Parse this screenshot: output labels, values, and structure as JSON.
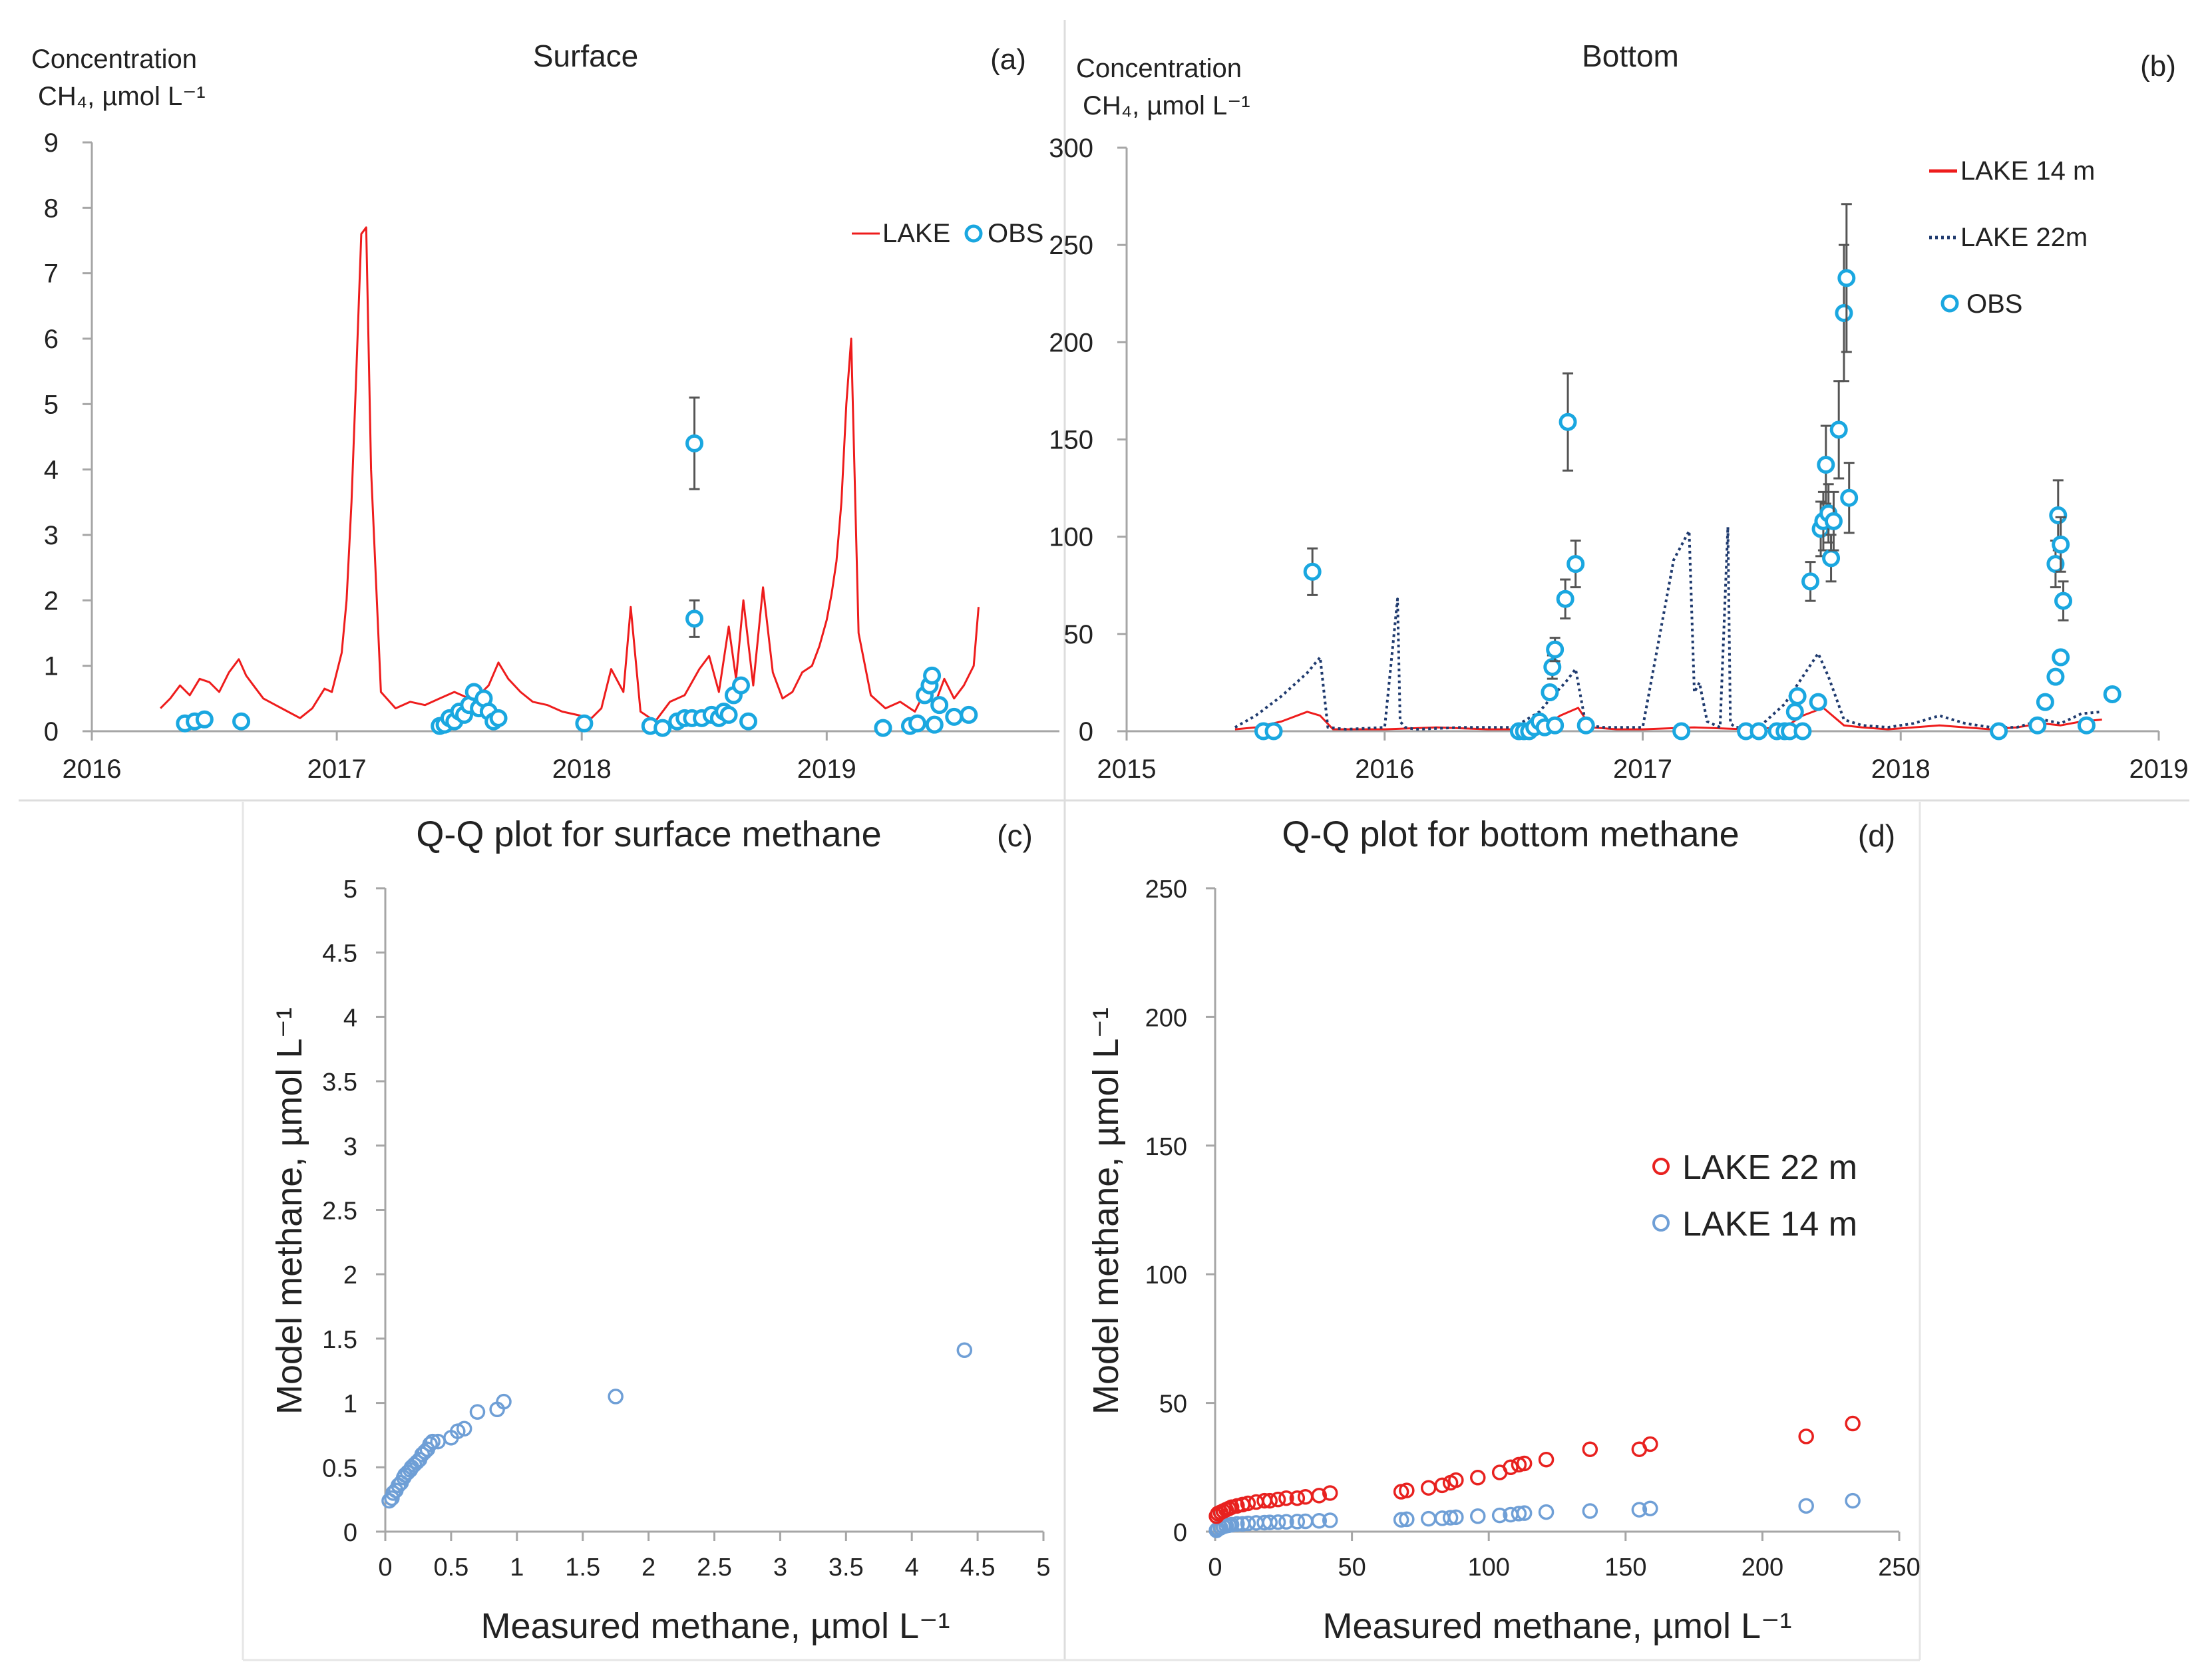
{
  "colors": {
    "lake": "#ee1c1c",
    "lake22": "#1f3a6e",
    "obs": "#1aa7e0",
    "qq_red": "#e8211f",
    "qq_blue": "#6f9fd6",
    "axis": "#a6a6a6",
    "errorbar": "#555555"
  },
  "chart_data": [
    {
      "id": "a",
      "type": "line",
      "title": "Surface",
      "panel_label": "(a)",
      "ylabel": [
        "Concentration",
        "CH₄, µmol L⁻¹"
      ],
      "xlim": [
        2016,
        2019.95
      ],
      "ylim": [
        0,
        9
      ],
      "xticks": [
        2016,
        2017,
        2018,
        2019
      ],
      "xtick_labels": [
        "2016",
        "2017",
        "2018",
        "2019"
      ],
      "yticks": [
        0,
        1,
        2,
        3,
        4,
        5,
        6,
        7,
        8,
        9
      ],
      "ytick_labels": [
        "0",
        "1",
        "2",
        "3",
        "4",
        "5",
        "6",
        "7",
        "8",
        "9"
      ],
      "legend": [
        "LAKE",
        "OBS"
      ],
      "series": [
        {
          "name": "LAKE",
          "style": "solid",
          "color": "lake",
          "x": [
            2016.28,
            2016.32,
            2016.36,
            2016.4,
            2016.44,
            2016.48,
            2016.52,
            2016.56,
            2016.6,
            2016.63,
            2016.66,
            2016.7,
            2016.75,
            2016.8,
            2016.85,
            2016.9,
            2016.95,
            2016.98,
            2017.0,
            2017.02,
            2017.04,
            2017.06,
            2017.08,
            2017.1,
            2017.12,
            2017.14,
            2017.18,
            2017.24,
            2017.3,
            2017.36,
            2017.42,
            2017.48,
            2017.54,
            2017.58,
            2017.62,
            2017.66,
            2017.7,
            2017.75,
            2017.8,
            2017.86,
            2017.92,
            2017.98,
            2018.04,
            2018.08,
            2018.12,
            2018.17,
            2018.2,
            2018.24,
            2018.3,
            2018.36,
            2018.42,
            2018.48,
            2018.52,
            2018.56,
            2018.6,
            2018.63,
            2018.66,
            2018.7,
            2018.74,
            2018.78,
            2018.82,
            2018.86,
            2018.9,
            2018.94,
            2018.97,
            2019.0,
            2019.02,
            2019.04,
            2019.06,
            2019.08,
            2019.1,
            2019.13,
            2019.18,
            2019.24,
            2019.3,
            2019.36,
            2019.4,
            2019.44,
            2019.48,
            2019.52,
            2019.56,
            2019.6,
            2019.62
          ],
          "y": [
            0.35,
            0.5,
            0.7,
            0.55,
            0.8,
            0.75,
            0.6,
            0.9,
            1.1,
            0.85,
            0.7,
            0.5,
            0.4,
            0.3,
            0.2,
            0.35,
            0.65,
            0.6,
            0.9,
            1.2,
            2.0,
            3.5,
            5.5,
            7.6,
            7.7,
            4.0,
            0.6,
            0.35,
            0.45,
            0.4,
            0.5,
            0.6,
            0.5,
            0.55,
            0.7,
            1.05,
            0.8,
            0.6,
            0.45,
            0.4,
            0.3,
            0.25,
            0.2,
            0.35,
            0.95,
            0.6,
            1.9,
            0.3,
            0.15,
            0.45,
            0.55,
            0.95,
            1.15,
            0.6,
            1.6,
            0.8,
            2.0,
            0.7,
            2.2,
            0.9,
            0.5,
            0.6,
            0.9,
            1.0,
            1.3,
            1.7,
            2.1,
            2.6,
            3.5,
            5.0,
            6.0,
            1.5,
            0.55,
            0.35,
            0.45,
            0.3,
            0.6,
            0.4,
            0.8,
            0.5,
            0.7,
            1.0,
            1.9
          ]
        },
        {
          "name": "OBS",
          "style": "markers",
          "color": "obs",
          "x": [
            2016.38,
            2016.42,
            2016.46,
            2016.61,
            2017.42,
            2017.44,
            2017.46,
            2017.48,
            2017.5,
            2017.52,
            2017.54,
            2017.56,
            2017.58,
            2017.6,
            2017.62,
            2017.64,
            2017.66,
            2018.01,
            2018.28,
            2018.33,
            2018.39,
            2018.42,
            2018.45,
            2018.49,
            2018.53,
            2018.56,
            2018.58,
            2018.6,
            2018.62,
            2018.65,
            2018.68,
            2019.23,
            2019.34,
            2019.37,
            2019.4,
            2019.42,
            2019.43,
            2019.44,
            2019.46,
            2019.52,
            2019.58
          ],
          "y": [
            0.12,
            0.15,
            0.18,
            0.15,
            0.08,
            0.1,
            0.2,
            0.15,
            0.3,
            0.25,
            0.4,
            0.6,
            0.35,
            0.5,
            0.3,
            0.15,
            0.2,
            0.12,
            0.08,
            0.05,
            0.15,
            0.2,
            0.2,
            0.2,
            0.25,
            0.2,
            0.3,
            0.25,
            0.55,
            0.7,
            0.15,
            0.05,
            0.08,
            0.12,
            0.55,
            0.7,
            0.85,
            0.1,
            0.4,
            0.22,
            0.25
          ]
        },
        {
          "name": "OBS (with error bars)",
          "style": "markers-errorbar",
          "color": "obs",
          "x": [
            2018.46,
            2018.46
          ],
          "y": [
            4.4,
            1.72
          ],
          "err": [
            0.7,
            0.28
          ]
        }
      ]
    },
    {
      "id": "b",
      "type": "line",
      "title": "Bottom",
      "panel_label": "(b)",
      "ylabel": [
        "Concentration",
        "CH₄, µmol L⁻¹"
      ],
      "xlim": [
        2015,
        2019
      ],
      "ylim": [
        0,
        300
      ],
      "xticks": [
        2015,
        2016,
        2017,
        2018,
        2019
      ],
      "xtick_labels": [
        "2015",
        "2016",
        "2017",
        "2018",
        "2019"
      ],
      "yticks": [
        0,
        50,
        100,
        150,
        200,
        250,
        300
      ],
      "ytick_labels": [
        "0",
        "50",
        "100",
        "150",
        "200",
        "250",
        "300"
      ],
      "legend": [
        "LAKE 14 m",
        "LAKE 22m",
        "OBS"
      ],
      "series": [
        {
          "name": "LAKE 14 m",
          "style": "solid",
          "color": "lake",
          "x": [
            2015.42,
            2015.5,
            2015.6,
            2015.7,
            2015.75,
            2015.8,
            2015.9,
            2016.0,
            2016.2,
            2016.4,
            2016.6,
            2016.68,
            2016.75,
            2016.8,
            2016.9,
            2017.0,
            2017.2,
            2017.4,
            2017.55,
            2017.62,
            2017.7,
            2017.78,
            2017.85,
            2017.95,
            2018.05,
            2018.15,
            2018.25,
            2018.35,
            2018.45,
            2018.55,
            2018.62,
            2018.7,
            2018.78
          ],
          "y": [
            1,
            2,
            5,
            10,
            8,
            1,
            1,
            1,
            2,
            1,
            1,
            8,
            12,
            2,
            1,
            1,
            2,
            1,
            2,
            8,
            12,
            3,
            2,
            1,
            2,
            3,
            2,
            1,
            2,
            4,
            3,
            5,
            6
          ]
        },
        {
          "name": "LAKE 22m",
          "style": "dotted",
          "color": "lake22",
          "x": [
            2015.42,
            2015.5,
            2015.6,
            2015.7,
            2015.75,
            2015.78,
            2015.85,
            2016.0,
            2016.05,
            2016.06,
            2016.08,
            2016.12,
            2016.3,
            2016.5,
            2016.6,
            2016.65,
            2016.7,
            2016.74,
            2016.78,
            2016.85,
            2017.0,
            2017.12,
            2017.18,
            2017.2,
            2017.22,
            2017.25,
            2017.3,
            2017.33,
            2017.34,
            2017.36,
            2017.45,
            2017.55,
            2017.62,
            2017.68,
            2017.72,
            2017.78,
            2017.85,
            2017.95,
            2018.05,
            2018.15,
            2018.25,
            2018.35,
            2018.45,
            2018.55,
            2018.62,
            2018.7,
            2018.78
          ],
          "y": [
            2,
            8,
            18,
            30,
            38,
            2,
            1,
            2,
            68,
            5,
            2,
            1,
            2,
            2,
            10,
            18,
            25,
            32,
            3,
            2,
            2,
            88,
            103,
            20,
            25,
            5,
            2,
            105,
            4,
            2,
            2,
            14,
            28,
            40,
            28,
            6,
            3,
            2,
            4,
            8,
            4,
            2,
            2,
            6,
            4,
            9,
            10
          ]
        },
        {
          "name": "OBS",
          "style": "markers",
          "color": "obs",
          "x": [
            2015.53,
            2015.57,
            2016.52,
            2016.54,
            2016.56,
            2016.58,
            2016.6,
            2016.62,
            2016.64,
            2016.66,
            2016.78,
            2017.15,
            2017.4,
            2017.45,
            2017.52,
            2017.55,
            2017.57,
            2017.59,
            2017.6,
            2017.62,
            2017.68,
            2018.38,
            2018.53,
            2018.56,
            2018.6,
            2018.62,
            2018.72,
            2018.82
          ],
          "y": [
            0,
            0,
            0,
            0,
            0,
            2,
            5,
            2,
            20,
            3,
            3,
            0,
            0,
            0,
            0,
            0,
            0,
            10,
            18,
            0,
            15,
            0,
            3,
            15,
            28,
            38,
            3,
            19
          ]
        },
        {
          "name": "OBS (with error bars)",
          "style": "markers-errorbar",
          "color": "obs",
          "x": [
            2015.72,
            2016.65,
            2016.66,
            2016.7,
            2016.71,
            2016.74,
            2017.65,
            2017.69,
            2017.7,
            2017.71,
            2017.72,
            2017.73,
            2017.74,
            2017.76,
            2017.78,
            2017.79,
            2017.8,
            2018.6,
            2018.61,
            2018.62,
            2018.63
          ],
          "y": [
            82,
            33,
            42,
            68,
            159,
            86,
            77,
            104,
            108,
            137,
            112,
            89,
            108,
            155,
            215,
            233,
            120,
            86,
            111,
            96,
            67
          ],
          "err": [
            12,
            6,
            6,
            10,
            25,
            12,
            10,
            14,
            15,
            20,
            15,
            12,
            15,
            25,
            35,
            38,
            18,
            12,
            18,
            14,
            10
          ]
        }
      ]
    },
    {
      "id": "c",
      "type": "scatter",
      "title": "Q-Q plot for surface methane",
      "panel_label": "(c)",
      "xlabel": "Measured methane, µmol L⁻¹",
      "ylabel": "Model methane, µmol L⁻¹",
      "xlim": [
        0,
        5
      ],
      "ylim": [
        0,
        5
      ],
      "xticks": [
        0,
        0.5,
        1,
        1.5,
        2,
        2.5,
        3,
        3.5,
        4,
        4.5,
        5
      ],
      "xtick_labels": [
        "0",
        "0.5",
        "1",
        "1.5",
        "2",
        "2.5",
        "3",
        "3.5",
        "4",
        "4.5",
        "5"
      ],
      "yticks": [
        0,
        0.5,
        1,
        1.5,
        2,
        2.5,
        3,
        3.5,
        4,
        4.5,
        5
      ],
      "ytick_labels": [
        "0",
        "0.5",
        "1",
        "1.5",
        "2",
        "2.5",
        "3",
        "3.5",
        "4",
        "4.5",
        "5"
      ],
      "series": [
        {
          "name": "surface",
          "color": "qq_blue",
          "x": [
            0.03,
            0.05,
            0.06,
            0.08,
            0.1,
            0.12,
            0.14,
            0.15,
            0.17,
            0.19,
            0.2,
            0.22,
            0.24,
            0.26,
            0.28,
            0.3,
            0.32,
            0.34,
            0.36,
            0.4,
            0.5,
            0.55,
            0.6,
            0.7,
            0.85,
            0.9,
            1.75,
            4.4
          ],
          "y": [
            0.24,
            0.26,
            0.3,
            0.32,
            0.36,
            0.38,
            0.42,
            0.44,
            0.46,
            0.48,
            0.5,
            0.52,
            0.54,
            0.56,
            0.6,
            0.62,
            0.64,
            0.68,
            0.7,
            0.7,
            0.73,
            0.78,
            0.8,
            0.93,
            0.95,
            1.01,
            1.05,
            1.41
          ]
        }
      ]
    },
    {
      "id": "d",
      "type": "scatter",
      "title": "Q-Q plot for bottom methane",
      "panel_label": "(d)",
      "xlabel": "Measured methane, µmol L⁻¹",
      "ylabel": "Model methane, µmol L⁻¹",
      "xlim": [
        0,
        250
      ],
      "ylim": [
        0,
        250
      ],
      "xticks": [
        0,
        50,
        100,
        150,
        200,
        250
      ],
      "xtick_labels": [
        "0",
        "50",
        "100",
        "150",
        "200",
        "250"
      ],
      "yticks": [
        0,
        50,
        100,
        150,
        200,
        250
      ],
      "ytick_labels": [
        "0",
        "50",
        "100",
        "150",
        "200",
        "250"
      ],
      "legend": [
        "LAKE 22 m",
        "LAKE 14 m"
      ],
      "series": [
        {
          "name": "LAKE 22 m",
          "color": "qq_red",
          "x": [
            0.5,
            1,
            2,
            3,
            4,
            5,
            6,
            8,
            10,
            12,
            15,
            18,
            20,
            23,
            26,
            30,
            33,
            38,
            42,
            68,
            70,
            78,
            83,
            86,
            88,
            96,
            104,
            108,
            111,
            113,
            121,
            137,
            155,
            159,
            216,
            233
          ],
          "y": [
            6,
            7,
            7.5,
            8,
            8.5,
            9,
            9.5,
            10,
            10.5,
            11,
            11.5,
            12,
            12,
            12.5,
            13,
            13,
            13.5,
            14,
            15,
            15.5,
            16,
            17,
            18,
            19,
            20,
            21,
            23,
            25,
            26,
            26.5,
            28,
            32,
            32,
            34,
            37,
            42
          ]
        },
        {
          "name": "LAKE 14 m",
          "color": "qq_blue",
          "x": [
            0.5,
            1,
            2,
            3,
            4,
            5,
            6,
            8,
            10,
            12,
            15,
            18,
            20,
            23,
            26,
            30,
            33,
            38,
            42,
            68,
            70,
            78,
            83,
            86,
            88,
            96,
            104,
            108,
            111,
            113,
            121,
            137,
            155,
            159,
            216,
            233
          ],
          "y": [
            0.5,
            1,
            1.5,
            2,
            2.3,
            2.5,
            2.7,
            3,
            3,
            3.2,
            3.4,
            3.5,
            3.6,
            3.7,
            3.8,
            3.9,
            4,
            4.2,
            4.4,
            4.6,
            4.8,
            5,
            5.2,
            5.4,
            5.6,
            6,
            6.3,
            6.6,
            7,
            7.2,
            7.6,
            8,
            8.5,
            9,
            10,
            12
          ]
        }
      ]
    }
  ]
}
